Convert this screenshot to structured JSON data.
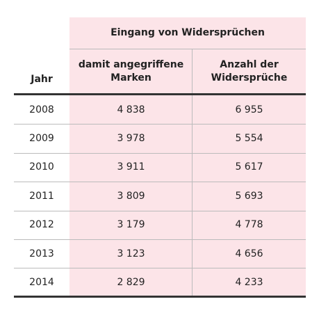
{
  "header": {
    "group": "Eingang von Widersprüchen",
    "columns": [
      [
        "Jahr"
      ],
      [
        "damit angegriffene",
        "Marken"
      ],
      [
        "Anzahl der",
        "Widersprüche"
      ]
    ]
  },
  "table": {
    "rows": [
      [
        "2008",
        "4 838",
        "6 955"
      ],
      [
        "2009",
        "3 978",
        "5 554"
      ],
      [
        "2010",
        "3 911",
        "5 617"
      ],
      [
        "2011",
        "3 809",
        "5 693"
      ],
      [
        "2012",
        "3 179",
        "4 778"
      ],
      [
        "2013",
        "3 123",
        "4 656"
      ],
      [
        "2014",
        "2 829",
        "4 233"
      ]
    ]
  }
}
